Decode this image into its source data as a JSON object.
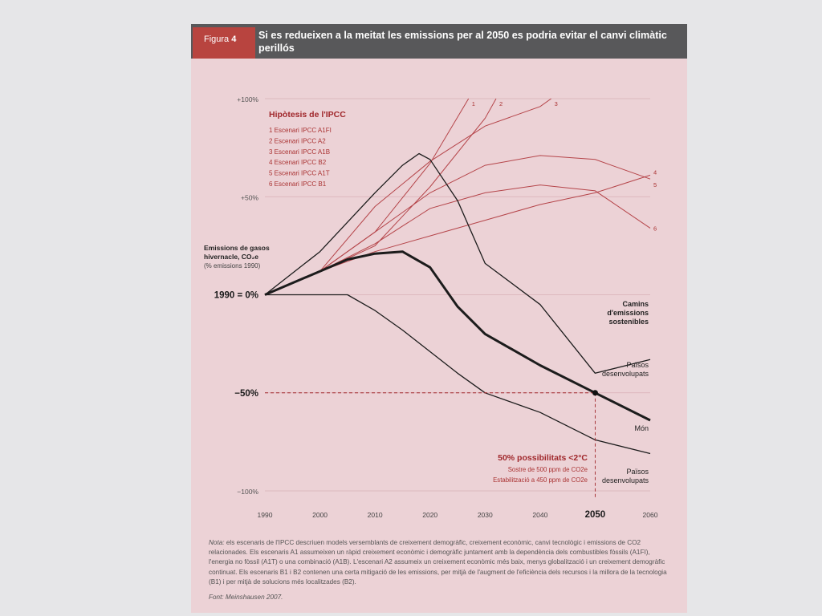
{
  "figure": {
    "label_prefix": "Figura",
    "number": "4",
    "title": "Si es redueixen a la meitat les emissions per al 2050 es podria evitar el canvi climàtic perillós"
  },
  "note": {
    "prefix": "Nota:",
    "text": "els escenaris de l'IPCC descriuen models versemblants de creixement demogràfic, creixement econòmic, canvi tecnològic i emissions de CO2 relacionades. Els escenaris A1 assumeixen un ràpid creixement econòmic i demogràfic juntament amb la dependència dels combustibles fòssils (A1FI), l'energia no fòssil (A1T) o una combinació (A1B). L'escenari A2 assumeix un creixement econòmic més baix, menys globalització i un creixement demogràfic continuat. Els escenaris B1 i B2 contenen una certa mitigació de les emissions, per mitjà de l'augment de l'eficiència dels recursos i la millora de la tecnologia (B1) i per mitjà de solucions més localitzades (B2)."
  },
  "source": "Font: Meinshausen 2007.",
  "colors": {
    "background": "#e6e6e8",
    "card": "#ecd2d6",
    "header": "#58585a",
    "tab": "#b8443f",
    "accent": "#a0282c",
    "ipcc_line": "#b5454a",
    "black_line": "#1c1c1c"
  },
  "chart_data": {
    "type": "line",
    "title": "",
    "ylabel": "Emissions de gasos hivernacle, CO2e (% emissions 1990)",
    "xlim": [
      1990,
      2060
    ],
    "ylim": [
      -100,
      100
    ],
    "x_ticks": [
      "1990",
      "2000",
      "2010",
      "2020",
      "2030",
      "2040",
      "2050",
      "2060"
    ],
    "x_tick_values": [
      1990,
      2000,
      2010,
      2020,
      2030,
      2040,
      2050,
      2060
    ],
    "x_highlight": "2050",
    "y_ticks": [
      {
        "value": 100,
        "label": "+100%",
        "emphasis": false
      },
      {
        "value": 50,
        "label": "+50%",
        "emphasis": false
      },
      {
        "value": 0,
        "label": "1990 = 0%",
        "emphasis": true
      },
      {
        "value": -50,
        "label": "−50%",
        "emphasis": true
      },
      {
        "value": -100,
        "label": "−100%",
        "emphasis": false
      }
    ],
    "grid": true,
    "legend": {
      "title": "Hipòtesis de l'IPCC",
      "position": "top-left",
      "items": [
        "1  Escenari IPCC A1FI",
        "2  Escenari IPCC A2",
        "3  Escenari IPCC A1B",
        "4  Escenari IPCC B2",
        "5  Escenari IPCC A1T",
        "6  Escenari IPCC B1"
      ]
    },
    "ipcc_series": [
      {
        "name": "1",
        "x": [
          1990,
          2000,
          2010,
          2020,
          2027
        ],
        "y": [
          0,
          12,
          32,
          67,
          100
        ]
      },
      {
        "name": "2",
        "x": [
          1990,
          2000,
          2010,
          2020,
          2030,
          2032
        ],
        "y": [
          0,
          12,
          25,
          55,
          90,
          100
        ]
      },
      {
        "name": "3",
        "x": [
          1990,
          2000,
          2010,
          2020,
          2030,
          2040,
          2042
        ],
        "y": [
          0,
          12,
          45,
          68,
          86,
          96,
          100
        ]
      },
      {
        "name": "4",
        "x": [
          1990,
          2000,
          2010,
          2020,
          2030,
          2040,
          2050,
          2060
        ],
        "y": [
          0,
          12,
          22,
          30,
          38,
          46,
          52,
          61
        ]
      },
      {
        "name": "5",
        "x": [
          1990,
          2000,
          2010,
          2020,
          2030,
          2040,
          2050,
          2060
        ],
        "y": [
          0,
          12,
          32,
          52,
          66,
          71,
          69,
          59
        ]
      },
      {
        "name": "6",
        "x": [
          1990,
          2000,
          2010,
          2020,
          2030,
          2040,
          2050,
          2060
        ],
        "y": [
          0,
          12,
          26,
          44,
          52,
          56,
          53,
          34
        ]
      }
    ],
    "paths": [
      {
        "name": "Països desenvolupats",
        "emphasis": false,
        "x": [
          1990,
          2000,
          2010,
          2015,
          2018,
          2020,
          2025,
          2030,
          2040,
          2050,
          2060
        ],
        "y": [
          0,
          22,
          52,
          66,
          72,
          69,
          48,
          16,
          -5,
          -40,
          -33
        ]
      },
      {
        "name": "Món",
        "emphasis": true,
        "x": [
          1990,
          2000,
          2005,
          2010,
          2015,
          2020,
          2025,
          2030,
          2040,
          2050,
          2060
        ],
        "y": [
          0,
          12,
          18,
          21,
          22,
          14,
          -6,
          -20,
          -36,
          -50,
          -64
        ]
      },
      {
        "name": "Països desenvolupats",
        "emphasis": false,
        "x": [
          1990,
          2000,
          2005,
          2010,
          2015,
          2020,
          2025,
          2030,
          2040,
          2050,
          2060
        ],
        "y": [
          0,
          0,
          0,
          -8,
          -18,
          -29,
          -40,
          -50,
          -60,
          -74,
          -81
        ]
      }
    ],
    "path_labels": [
      {
        "text": "Camins d'emissions sostenibles",
        "emphasis": true
      },
      {
        "text": "Països desenvolupats",
        "emphasis": false
      },
      {
        "text": "Món",
        "emphasis": false
      },
      {
        "text": "Països desenvolupats",
        "emphasis": false
      }
    ],
    "target": {
      "x": 2050,
      "y": -50
    },
    "annotation": {
      "title": "50% possibilitats <2°C",
      "line1": "Sostre de 500 ppm de CO2e",
      "line2": "Estabilització a 450 ppm de  CO2e"
    }
  }
}
